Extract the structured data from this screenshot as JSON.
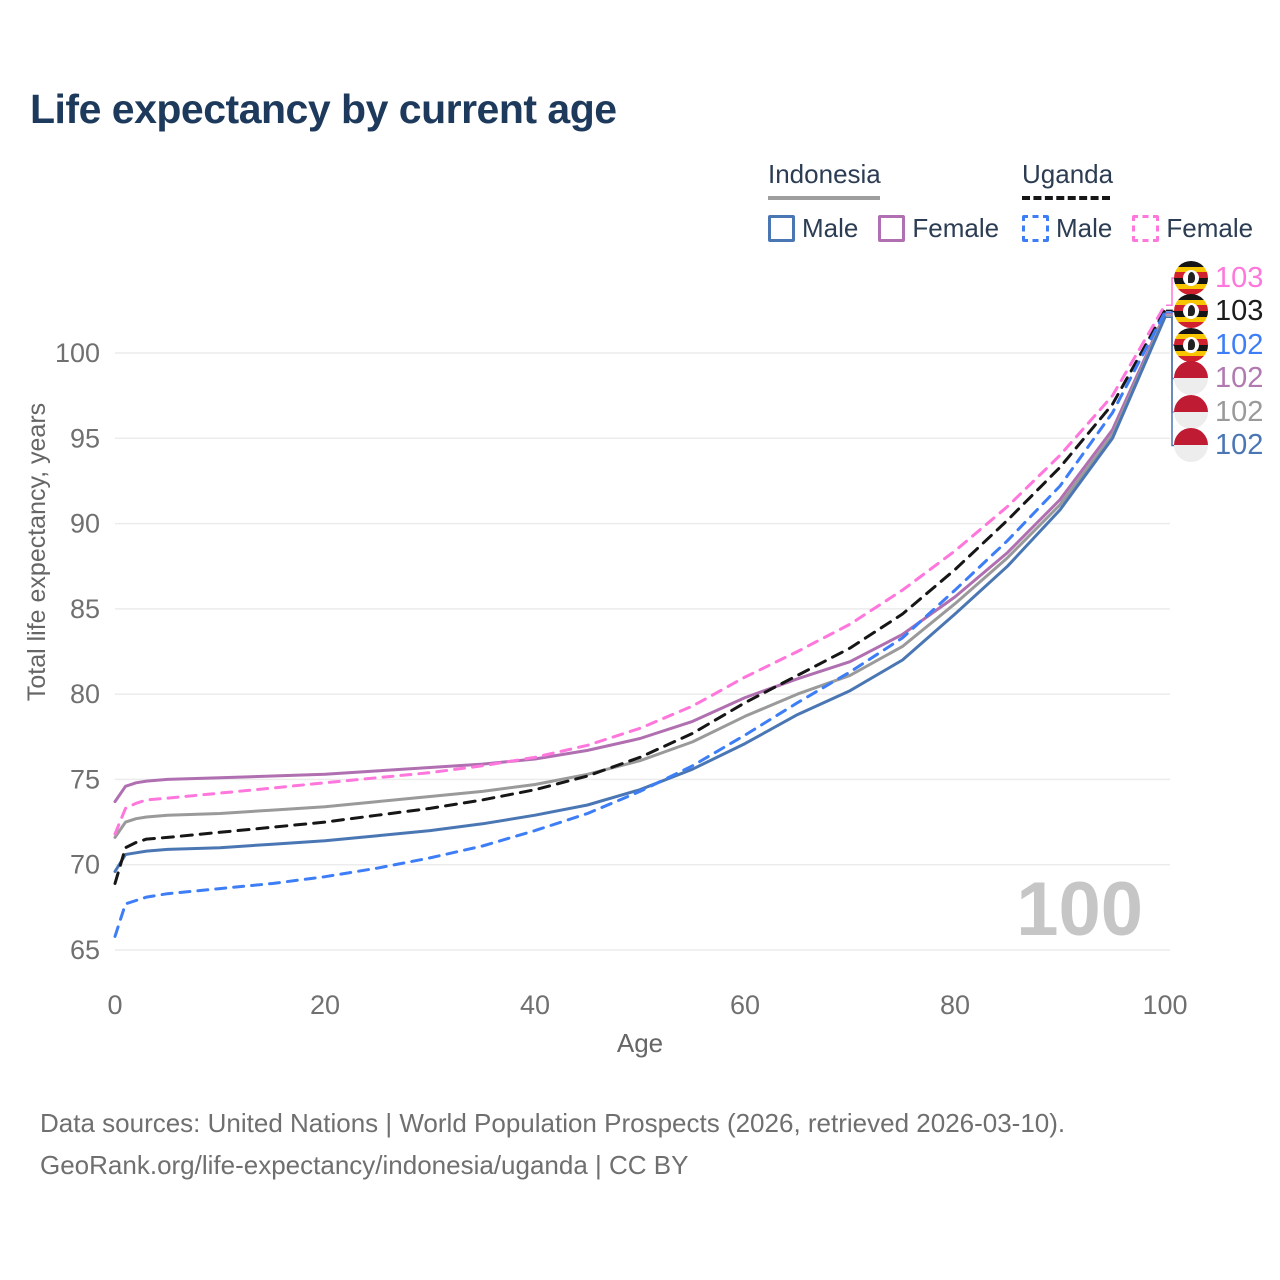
{
  "title": "Life expectancy by current age",
  "legend": {
    "groups": [
      {
        "label": "Indonesia",
        "line_style": "solid",
        "underline_color": "#9e9e9e",
        "items": [
          {
            "label": "Male",
            "color": "#4a77b4"
          },
          {
            "label": "Female",
            "color": "#b06fb0"
          }
        ]
      },
      {
        "label": "Uganda",
        "line_style": "dashed",
        "underline_color": "#161616",
        "items": [
          {
            "label": "Male",
            "color": "#3d7ef7"
          },
          {
            "label": "Female",
            "color": "#ff76dc"
          }
        ]
      }
    ]
  },
  "watermark": "100",
  "footer": {
    "line1": "Data sources: United Nations | World Population Prospects (2026, retrieved 2026-03-10).",
    "line2": "GeoRank.org/life-expectancy/indonesia/uganda | CC BY"
  },
  "chart_data": {
    "type": "line",
    "title": "Life expectancy by current age",
    "xlabel": "Age",
    "ylabel": "Total life expectancy, years",
    "xlim": [
      0,
      100
    ],
    "ylim": [
      65,
      103.5
    ],
    "x_ticks": [
      0,
      20,
      40,
      60,
      80,
      100
    ],
    "y_ticks": [
      65,
      70,
      75,
      80,
      85,
      90,
      95,
      100
    ],
    "grid": "horizontal",
    "grid_color": "#ececec",
    "tick_color": "#707070",
    "legend_position": "top-right",
    "x": [
      0,
      1,
      2,
      3,
      5,
      10,
      15,
      20,
      25,
      30,
      35,
      40,
      45,
      50,
      55,
      60,
      65,
      70,
      75,
      80,
      85,
      90,
      95,
      100
    ],
    "series": [
      {
        "id": "indonesia-female",
        "name": "Indonesia Female",
        "color": "#b06fb0",
        "dash": false,
        "values": [
          73.7,
          74.6,
          74.8,
          74.9,
          75.0,
          75.1,
          75.2,
          75.3,
          75.5,
          75.7,
          75.9,
          76.2,
          76.7,
          77.4,
          78.4,
          79.8,
          80.9,
          81.9,
          83.5,
          85.7,
          88.3,
          91.4,
          95.5,
          102.3
        ]
      },
      {
        "id": "indonesia-total",
        "name": "Indonesia Both sexes",
        "color": "#9a9a9a",
        "dash": false,
        "values": [
          71.6,
          72.5,
          72.7,
          72.8,
          72.9,
          73.0,
          73.2,
          73.4,
          73.7,
          74.0,
          74.3,
          74.7,
          75.3,
          76.1,
          77.2,
          78.7,
          80.0,
          81.1,
          82.8,
          85.3,
          88.0,
          91.1,
          95.2,
          102.2
        ]
      },
      {
        "id": "indonesia-male",
        "name": "Indonesia Male",
        "color": "#4a77b4",
        "dash": false,
        "values": [
          69.6,
          70.6,
          70.7,
          70.8,
          70.9,
          71.0,
          71.2,
          71.4,
          71.7,
          72.0,
          72.4,
          72.9,
          73.5,
          74.4,
          75.6,
          77.1,
          78.8,
          80.2,
          82.0,
          84.7,
          87.5,
          90.8,
          95.0,
          102.1
        ]
      },
      {
        "id": "uganda-female",
        "name": "Uganda Female",
        "color": "#ff76dc",
        "dash": "10 8",
        "values": [
          71.8,
          73.3,
          73.6,
          73.8,
          73.9,
          74.2,
          74.5,
          74.8,
          75.1,
          75.4,
          75.8,
          76.3,
          77.0,
          78.0,
          79.3,
          81.0,
          82.5,
          84.1,
          86.1,
          88.4,
          91.0,
          94.0,
          97.5,
          102.8
        ]
      },
      {
        "id": "uganda-total",
        "name": "Uganda Both sexes",
        "color": "#161616",
        "dash": "11 8",
        "values": [
          68.9,
          71.0,
          71.3,
          71.5,
          71.6,
          71.9,
          72.2,
          72.5,
          72.9,
          73.3,
          73.8,
          74.4,
          75.2,
          76.3,
          77.7,
          79.5,
          81.1,
          82.7,
          84.7,
          87.3,
          90.2,
          93.3,
          97.0,
          102.5
        ]
      },
      {
        "id": "uganda-male",
        "name": "Uganda Male",
        "color": "#3d7ef7",
        "dash": "10 8",
        "values": [
          65.8,
          67.7,
          67.9,
          68.1,
          68.3,
          68.6,
          68.9,
          69.3,
          69.8,
          70.4,
          71.1,
          72.0,
          73.0,
          74.3,
          75.8,
          77.6,
          79.5,
          81.3,
          83.3,
          86.1,
          89.0,
          92.2,
          96.5,
          102.4
        ]
      }
    ],
    "end_labels": [
      {
        "value": "103",
        "series": "uganda-female",
        "country": "Uganda",
        "flag_class": "flag uganda",
        "color": "#ff76dc"
      },
      {
        "value": "103",
        "series": "uganda-total",
        "country": "Uganda",
        "flag_class": "flag uganda",
        "color": "#1c1c1c"
      },
      {
        "value": "102",
        "series": "uganda-male",
        "country": "Uganda",
        "flag_class": "flag uganda",
        "color": "#3d7ef7"
      },
      {
        "value": "102",
        "series": "indonesia-female",
        "country": "Indonesia",
        "flag_class": "flag indonesia",
        "color": "#b07ab0"
      },
      {
        "value": "102",
        "series": "indonesia-total",
        "country": "Indonesia",
        "flag_class": "flag indonesia",
        "color": "#9a9a9a"
      },
      {
        "value": "102",
        "series": "indonesia-male",
        "country": "Indonesia",
        "flag_class": "flag indonesia",
        "color": "#4a77b4"
      }
    ]
  }
}
